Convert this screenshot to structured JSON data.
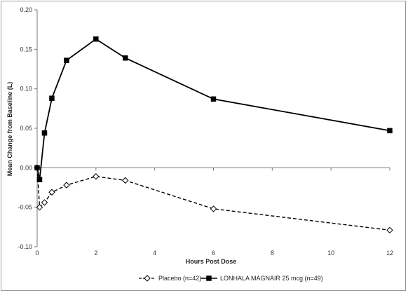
{
  "chart_data": {
    "type": "line",
    "title": "",
    "xlabel": "Hours Post Dose",
    "ylabel": "Mean Change from Baseline (L)",
    "xlim": [
      0,
      12
    ],
    "ylim": [
      -0.1,
      0.2
    ],
    "x_ticks": [
      0,
      2,
      4,
      6,
      8,
      10,
      12
    ],
    "x_tick_labels": [
      "0",
      "2",
      "4",
      "6",
      "8",
      "10",
      "12"
    ],
    "y_ticks": [
      -0.1,
      -0.05,
      0.0,
      0.05,
      0.1,
      0.15,
      0.2
    ],
    "y_tick_labels": [
      "-0.10",
      "-0.05",
      "0.00",
      "0.05",
      "0.10",
      "0.15",
      "0.20"
    ],
    "grid": false,
    "legend_position": "bottom",
    "series": [
      {
        "name": "Placebo (n=42)",
        "style": "dashed",
        "marker": "open-diamond",
        "color": "#000000",
        "x": [
          0,
          0.083,
          0.25,
          0.5,
          1,
          2,
          3,
          6,
          12
        ],
        "y": [
          0.0,
          -0.05,
          -0.044,
          -0.031,
          -0.022,
          -0.011,
          -0.016,
          -0.052,
          -0.079
        ]
      },
      {
        "name": "LONHALA MAGNAIR 25 mcg (n=49)",
        "style": "solid",
        "marker": "filled-square",
        "color": "#000000",
        "x": [
          0,
          0.083,
          0.25,
          0.5,
          1,
          2,
          3,
          6,
          12
        ],
        "y": [
          0.0,
          -0.015,
          0.044,
          0.088,
          0.136,
          0.163,
          0.139,
          0.087,
          0.047
        ]
      }
    ]
  }
}
